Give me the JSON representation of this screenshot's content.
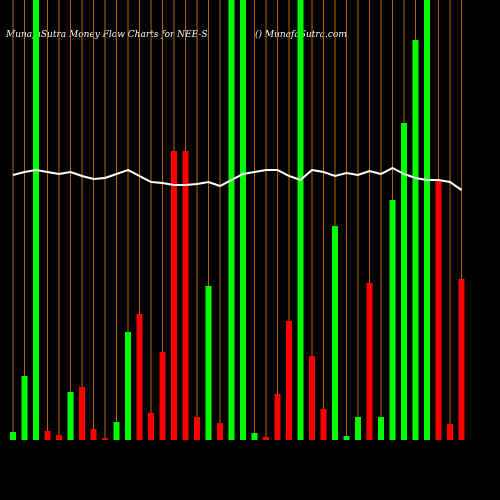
{
  "chart_data": {
    "type": "bar",
    "title": "MunafaSutra  Money Flow  Charts for NEE-S",
    "subtitle": "() MunafaSutra.com",
    "ylim": [
      0,
      440
    ],
    "values": [
      8,
      64,
      440,
      9,
      5,
      48,
      53,
      11,
      2,
      18,
      108,
      126,
      27,
      88,
      289,
      289,
      23,
      154,
      17,
      440,
      440,
      7,
      3,
      46,
      119,
      440,
      84,
      31,
      214,
      4,
      23,
      157,
      23,
      240,
      317,
      400,
      440,
      259,
      16,
      161
    ],
    "colors": [
      "#00ff00",
      "#00ff00",
      "#00ff00",
      "#ff0000",
      "#ff0000",
      "#00ff00",
      "#ff0000",
      "#ff0000",
      "#ff0000",
      "#00ff00",
      "#00ff00",
      "#ff0000",
      "#ff0000",
      "#ff0000",
      "#ff0000",
      "#ff0000",
      "#ff0000",
      "#00ff00",
      "#ff0000",
      "#00ff00",
      "#00ff00",
      "#00ff00",
      "#ff0000",
      "#ff0000",
      "#ff0000",
      "#00ff00",
      "#ff0000",
      "#ff0000",
      "#00ff00",
      "#00ff00",
      "#00ff00",
      "#ff0000",
      "#00ff00",
      "#00ff00",
      "#00ff00",
      "#00ff00",
      "#00ff00",
      "#ff0000",
      "#ff0000",
      "#ff0000"
    ],
    "line": {
      "color": "#ffffff",
      "values": [
        265,
        268,
        270,
        268,
        266,
        268,
        264,
        261,
        262,
        266,
        270,
        264,
        258,
        257,
        255,
        255,
        256,
        258,
        254,
        260,
        266,
        268,
        270,
        270,
        264,
        260,
        270,
        268,
        264,
        267,
        265,
        269,
        266,
        272,
        266,
        262,
        260,
        260,
        258,
        250
      ]
    },
    "grid": true,
    "grid_color": "#b8650a"
  }
}
